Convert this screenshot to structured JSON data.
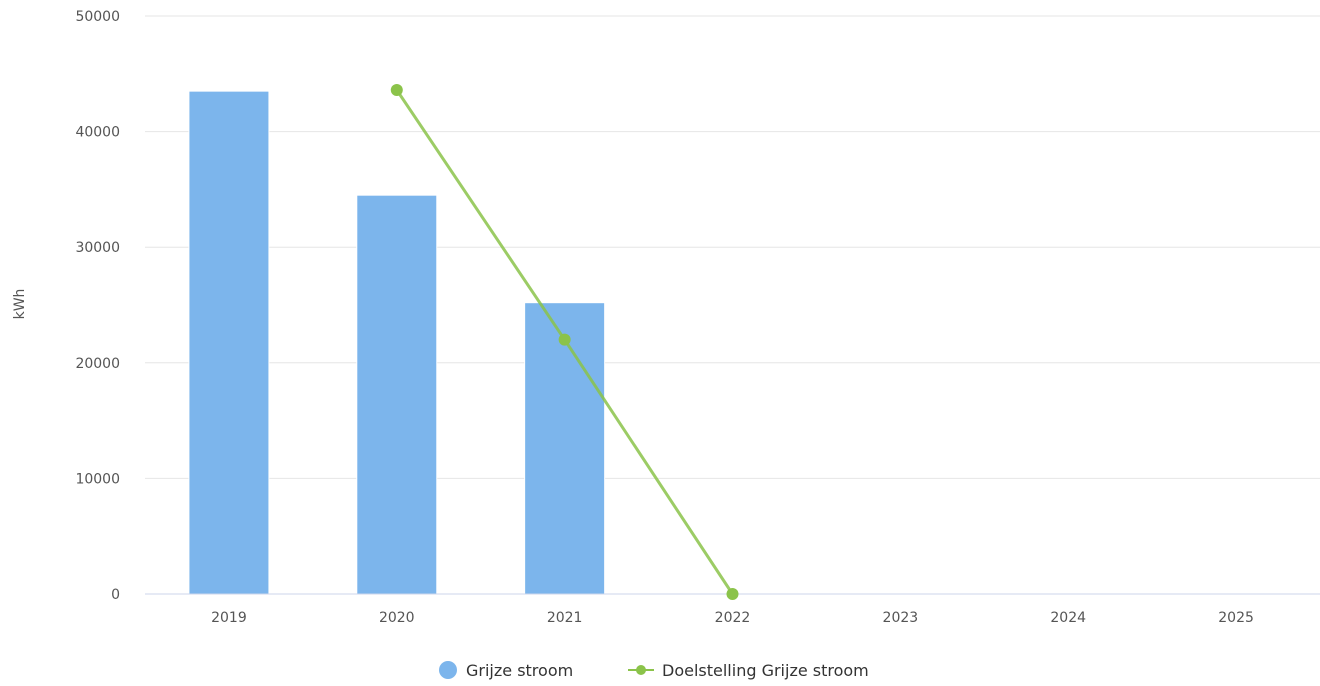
{
  "chart_data": {
    "type": "bar",
    "categories": [
      "2019",
      "2020",
      "2021",
      "2022",
      "2023",
      "2024",
      "2025"
    ],
    "ylabel": "kWh",
    "xlabel": "",
    "ylim": [
      0,
      50000
    ],
    "yticks": [
      0,
      10000,
      20000,
      30000,
      40000,
      50000
    ],
    "grid": true,
    "legend_position": "bottom",
    "series": [
      {
        "name": "Grijze stroom",
        "type": "bar",
        "color": "#7cb5ec",
        "values": [
          43500,
          34500,
          25200,
          null,
          null,
          null,
          null
        ]
      },
      {
        "name": "Doelstelling Grijze stroom",
        "type": "line",
        "color": "#8bc34a",
        "values": [
          null,
          43600,
          22000,
          0,
          null,
          null,
          null
        ]
      }
    ]
  }
}
